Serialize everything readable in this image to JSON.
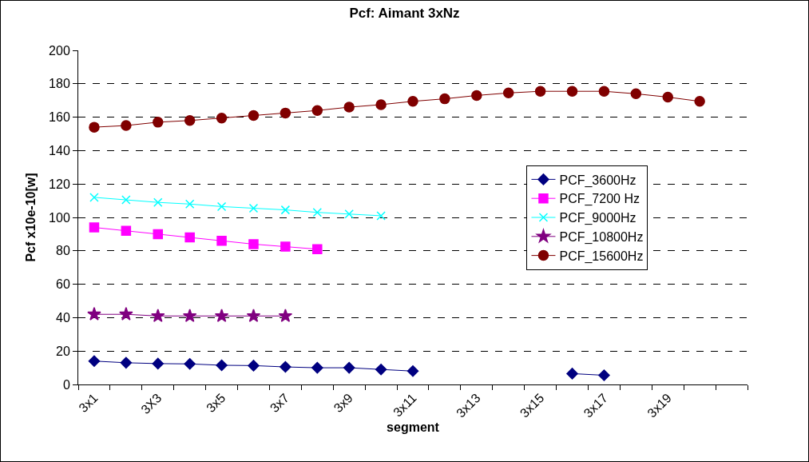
{
  "chart_data": {
    "type": "line",
    "title": "Pcf: Aimant 3xNz",
    "xlabel": "segment",
    "ylabel": "Pcf x10e-10[w]",
    "categories": [
      "3x1",
      null,
      "3X3",
      null,
      "3x5",
      null,
      "3x7",
      null,
      "3x9",
      null,
      "3x11",
      null,
      "3x13",
      null,
      "3x15",
      null,
      "3x17",
      null,
      "3x19",
      null,
      null
    ],
    "series": [
      {
        "name": "PCF_3600Hz",
        "color": "#000080",
        "marker": "diamond",
        "values": [
          14,
          13,
          12.5,
          12.3,
          11.5,
          11.3,
          10.5,
          10,
          10,
          9,
          8,
          null,
          null,
          null,
          null,
          6.5,
          5.5,
          null,
          null,
          null,
          null
        ]
      },
      {
        "name": "PCF_7200 Hz",
        "color": "#ff00ff",
        "marker": "square",
        "values": [
          94,
          92,
          90,
          88,
          86,
          84,
          82.5,
          81,
          null,
          null,
          null,
          null,
          null,
          null,
          null,
          null,
          null,
          null,
          null,
          null,
          null
        ]
      },
      {
        "name": "PCF_9000Hz",
        "color": "#00ffff",
        "marker": "cross",
        "values": [
          112,
          110.5,
          109,
          108,
          106.5,
          105.5,
          104.5,
          103,
          102,
          101,
          null,
          null,
          null,
          null,
          null,
          null,
          null,
          null,
          null,
          null,
          null
        ]
      },
      {
        "name": "PCF_10800Hz",
        "color": "#800080",
        "marker": "star",
        "values": [
          42,
          42,
          41,
          41,
          41,
          41,
          41,
          null,
          null,
          null,
          null,
          null,
          null,
          null,
          null,
          null,
          null,
          null,
          null,
          null,
          null
        ]
      },
      {
        "name": "PCF_15600Hz",
        "color": "#800000",
        "marker": "circle",
        "values": [
          154,
          155,
          157,
          158,
          159.5,
          161,
          162.5,
          164,
          166,
          167.5,
          169.5,
          171,
          173,
          174.5,
          175.5,
          175.5,
          175.5,
          174,
          172,
          169.5,
          null
        ]
      }
    ],
    "ylim": [
      0,
      200
    ],
    "yticks": [
      0,
      20,
      40,
      60,
      80,
      100,
      120,
      140,
      160,
      180,
      200
    ],
    "grid": "y",
    "legend": "right",
    "line_style": "solid"
  }
}
